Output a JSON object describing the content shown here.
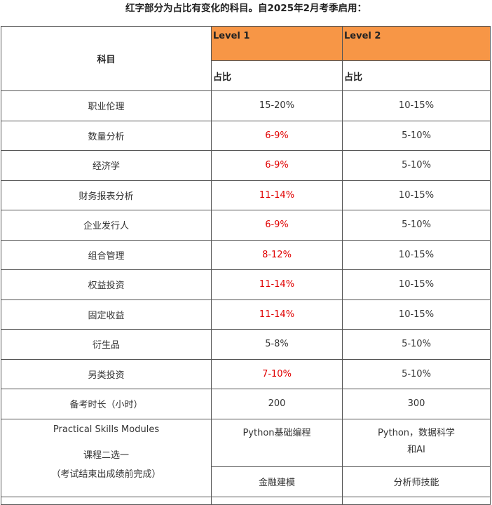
{
  "heading": "红字部分为占比有变化的科目。自2025年2月考季启用：",
  "table": {
    "subject_header": "科目",
    "level1_header": "Level 1",
    "level2_header": "Level 2",
    "ratio_label_1": "占比",
    "ratio_label_2": "占比",
    "rows": [
      {
        "subject": "职业伦理",
        "l1": "15-20%",
        "l2": "10-15%",
        "l1_changed": false
      },
      {
        "subject": "数量分析",
        "l1": "6-9%",
        "l2": "5-10%",
        "l1_changed": true
      },
      {
        "subject": "经济学",
        "l1": "6-9%",
        "l2": "5-10%",
        "l1_changed": true
      },
      {
        "subject": "财务报表分析",
        "l1": "11-14%",
        "l2": "10-15%",
        "l1_changed": true
      },
      {
        "subject": "企业发行人",
        "l1": "6-9%",
        "l2": "5-10%",
        "l1_changed": true
      },
      {
        "subject": "组合管理",
        "l1": "8-12%",
        "l2": "10-15%",
        "l1_changed": true
      },
      {
        "subject": "权益投资",
        "l1": "11-14%",
        "l2": "10-15%",
        "l1_changed": true
      },
      {
        "subject": "固定收益",
        "l1": "11-14%",
        "l2": "10-15%",
        "l1_changed": true
      },
      {
        "subject": "衍生品",
        "l1": "5-8%",
        "l2": "5-10%",
        "l1_changed": false
      },
      {
        "subject": "另类投资",
        "l1": "7-10%",
        "l2": "5-10%",
        "l1_changed": true
      }
    ],
    "study_hours": {
      "label": "备考时长（小时）",
      "l1": "200",
      "l2": "300"
    },
    "practical_skills": {
      "title": "Practical Skills Modules",
      "choose": "课程二选一",
      "note": "（考试结束出成绩前完成）",
      "l1_option_a": "Python基础编程",
      "l1_option_b": "金融建模",
      "l2_option_a_line1": "Python，数据科学",
      "l2_option_a_line2": "和AI",
      "l2_option_b": "分析师技能"
    }
  },
  "colors": {
    "header_orange": "#f79646",
    "changed_red": "#e00000"
  }
}
